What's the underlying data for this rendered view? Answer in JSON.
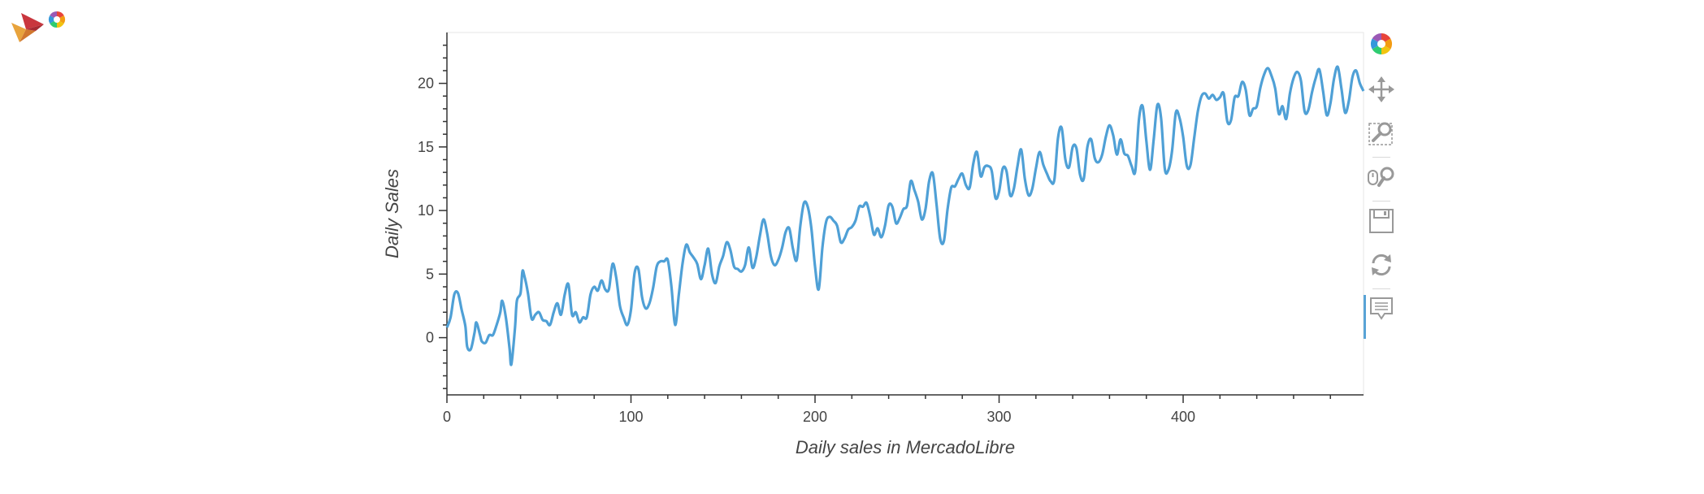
{
  "toolbar": {
    "tools": [
      {
        "name": "bokeh-logo-icon"
      },
      {
        "name": "pan-tool-icon"
      },
      {
        "name": "box-zoom-tool-icon"
      },
      {
        "name": "wheel-zoom-tool-icon"
      },
      {
        "name": "save-tool-icon"
      },
      {
        "name": "reset-tool-icon"
      },
      {
        "name": "hover-tool-icon"
      }
    ]
  },
  "chart_data": {
    "type": "line",
    "title": "",
    "xlabel": "Daily sales in MercadoLibre",
    "ylabel": "Daily Sales",
    "xlim": [
      0,
      498
    ],
    "ylim": [
      -4.5,
      24
    ],
    "x_ticks": [
      0,
      100,
      200,
      300,
      400
    ],
    "y_ticks": [
      0,
      5,
      10,
      15,
      20
    ],
    "grid": false,
    "line_color": "#4fa0d6",
    "series": [
      {
        "points": [
          [
            0,
            0.8
          ],
          [
            2,
            1.6
          ],
          [
            4,
            3.4
          ],
          [
            6,
            3.5
          ],
          [
            8,
            2.2
          ],
          [
            10,
            0.9
          ],
          [
            11,
            -0.7
          ],
          [
            13,
            -0.9
          ],
          [
            15,
            0.4
          ],
          [
            16,
            1.2
          ],
          [
            18,
            0.2
          ],
          [
            19,
            -0.3
          ],
          [
            21,
            -0.4
          ],
          [
            23,
            0.2
          ],
          [
            25,
            0.2
          ],
          [
            27,
            1.0
          ],
          [
            29,
            2.0
          ],
          [
            30,
            2.9
          ],
          [
            32,
            1.6
          ],
          [
            34,
            -0.8
          ],
          [
            35,
            -2.1
          ],
          [
            37,
            0.8
          ],
          [
            38,
            2.9
          ],
          [
            40,
            3.5
          ],
          [
            41,
            5.2
          ],
          [
            42,
            4.9
          ],
          [
            44,
            3.5
          ],
          [
            46,
            1.5
          ],
          [
            48,
            1.8
          ],
          [
            50,
            2.0
          ],
          [
            52,
            1.4
          ],
          [
            54,
            1.3
          ],
          [
            56,
            1.0
          ],
          [
            58,
            2.0
          ],
          [
            60,
            2.7
          ],
          [
            62,
            1.8
          ],
          [
            64,
            3.4
          ],
          [
            66,
            4.2
          ],
          [
            68,
            1.8
          ],
          [
            70,
            2.0
          ],
          [
            72,
            1.2
          ],
          [
            74,
            1.6
          ],
          [
            76,
            1.6
          ],
          [
            78,
            3.4
          ],
          [
            80,
            4.0
          ],
          [
            82,
            3.7
          ],
          [
            84,
            4.5
          ],
          [
            86,
            3.8
          ],
          [
            88,
            3.8
          ],
          [
            90,
            5.8
          ],
          [
            92,
            4.7
          ],
          [
            94,
            2.5
          ],
          [
            96,
            1.6
          ],
          [
            98,
            1.0
          ],
          [
            100,
            2.2
          ],
          [
            102,
            5.1
          ],
          [
            104,
            5.4
          ],
          [
            106,
            3.2
          ],
          [
            108,
            2.3
          ],
          [
            110,
            2.7
          ],
          [
            112,
            3.9
          ],
          [
            114,
            5.6
          ],
          [
            116,
            6.0
          ],
          [
            118,
            6.0
          ],
          [
            120,
            6.1
          ],
          [
            122,
            4.0
          ],
          [
            124,
            1.0
          ],
          [
            126,
            3.4
          ],
          [
            128,
            5.8
          ],
          [
            130,
            7.3
          ],
          [
            132,
            6.7
          ],
          [
            134,
            6.3
          ],
          [
            136,
            5.8
          ],
          [
            138,
            4.6
          ],
          [
            140,
            5.7
          ],
          [
            142,
            7.0
          ],
          [
            144,
            5.0
          ],
          [
            146,
            4.3
          ],
          [
            148,
            5.6
          ],
          [
            150,
            6.4
          ],
          [
            152,
            7.5
          ],
          [
            154,
            6.9
          ],
          [
            156,
            5.6
          ],
          [
            158,
            5.4
          ],
          [
            160,
            5.2
          ],
          [
            162,
            5.7
          ],
          [
            164,
            7.1
          ],
          [
            166,
            5.5
          ],
          [
            168,
            6.3
          ],
          [
            170,
            8.0
          ],
          [
            172,
            9.3
          ],
          [
            174,
            8.2
          ],
          [
            176,
            6.4
          ],
          [
            178,
            5.7
          ],
          [
            180,
            6.1
          ],
          [
            182,
            7.0
          ],
          [
            184,
            8.3
          ],
          [
            186,
            8.6
          ],
          [
            188,
            7.0
          ],
          [
            190,
            6.1
          ],
          [
            192,
            8.8
          ],
          [
            194,
            10.6
          ],
          [
            196,
            10.3
          ],
          [
            198,
            8.6
          ],
          [
            200,
            5.6
          ],
          [
            202,
            3.8
          ],
          [
            204,
            7.1
          ],
          [
            206,
            9.1
          ],
          [
            208,
            9.5
          ],
          [
            210,
            9.2
          ],
          [
            212,
            8.8
          ],
          [
            214,
            7.5
          ],
          [
            216,
            7.8
          ],
          [
            218,
            8.5
          ],
          [
            220,
            8.7
          ],
          [
            222,
            9.2
          ],
          [
            224,
            10.3
          ],
          [
            226,
            10.3
          ],
          [
            228,
            10.6
          ],
          [
            230,
            9.5
          ],
          [
            232,
            8.1
          ],
          [
            234,
            8.6
          ],
          [
            236,
            7.9
          ],
          [
            238,
            8.8
          ],
          [
            240,
            10.4
          ],
          [
            242,
            10.3
          ],
          [
            244,
            9.0
          ],
          [
            246,
            9.4
          ],
          [
            248,
            10.1
          ],
          [
            250,
            10.4
          ],
          [
            252,
            12.3
          ],
          [
            254,
            11.6
          ],
          [
            256,
            10.7
          ],
          [
            258,
            9.3
          ],
          [
            260,
            10.1
          ],
          [
            262,
            12.3
          ],
          [
            264,
            12.9
          ],
          [
            266,
            10.5
          ],
          [
            268,
            7.8
          ],
          [
            270,
            7.6
          ],
          [
            272,
            10.1
          ],
          [
            274,
            11.8
          ],
          [
            276,
            11.9
          ],
          [
            278,
            12.5
          ],
          [
            280,
            12.9
          ],
          [
            282,
            12.0
          ],
          [
            284,
            11.8
          ],
          [
            286,
            13.7
          ],
          [
            288,
            14.6
          ],
          [
            290,
            12.7
          ],
          [
            292,
            13.4
          ],
          [
            294,
            13.5
          ],
          [
            296,
            13.1
          ],
          [
            298,
            11.0
          ],
          [
            300,
            11.5
          ],
          [
            302,
            13.3
          ],
          [
            304,
            13.1
          ],
          [
            306,
            11.2
          ],
          [
            308,
            11.7
          ],
          [
            310,
            13.5
          ],
          [
            312,
            14.8
          ],
          [
            314,
            12.5
          ],
          [
            316,
            11.2
          ],
          [
            318,
            11.7
          ],
          [
            320,
            13.3
          ],
          [
            322,
            14.6
          ],
          [
            324,
            13.6
          ],
          [
            326,
            12.9
          ],
          [
            328,
            12.3
          ],
          [
            330,
            12.4
          ],
          [
            332,
            15.7
          ],
          [
            334,
            16.5
          ],
          [
            336,
            14.0
          ],
          [
            338,
            13.4
          ],
          [
            340,
            15.0
          ],
          [
            342,
            14.9
          ],
          [
            344,
            12.8
          ],
          [
            346,
            12.5
          ],
          [
            348,
            15.0
          ],
          [
            350,
            15.6
          ],
          [
            352,
            14.1
          ],
          [
            354,
            13.8
          ],
          [
            356,
            14.4
          ],
          [
            358,
            15.8
          ],
          [
            360,
            16.7
          ],
          [
            362,
            15.9
          ],
          [
            364,
            14.4
          ],
          [
            366,
            15.6
          ],
          [
            368,
            14.5
          ],
          [
            370,
            14.3
          ],
          [
            372,
            13.5
          ],
          [
            374,
            13.1
          ],
          [
            376,
            17.2
          ],
          [
            378,
            18.2
          ],
          [
            380,
            15.5
          ],
          [
            382,
            13.2
          ],
          [
            384,
            15.6
          ],
          [
            386,
            18.3
          ],
          [
            388,
            17.3
          ],
          [
            390,
            13.3
          ],
          [
            392,
            13.2
          ],
          [
            394,
            14.7
          ],
          [
            396,
            17.7
          ],
          [
            398,
            17.3
          ],
          [
            400,
            15.8
          ],
          [
            402,
            13.5
          ],
          [
            404,
            13.6
          ],
          [
            406,
            15.7
          ],
          [
            408,
            17.8
          ],
          [
            410,
            19.0
          ],
          [
            412,
            19.2
          ],
          [
            414,
            18.8
          ],
          [
            416,
            19.1
          ],
          [
            418,
            18.7
          ],
          [
            420,
            18.9
          ],
          [
            422,
            19.2
          ],
          [
            424,
            17.0
          ],
          [
            426,
            17.1
          ],
          [
            428,
            18.9
          ],
          [
            430,
            19.0
          ],
          [
            432,
            20.1
          ],
          [
            434,
            19.5
          ],
          [
            436,
            17.5
          ],
          [
            438,
            18.0
          ],
          [
            440,
            18.2
          ],
          [
            442,
            19.7
          ],
          [
            444,
            20.7
          ],
          [
            446,
            21.2
          ],
          [
            448,
            20.6
          ],
          [
            450,
            19.6
          ],
          [
            452,
            17.6
          ],
          [
            454,
            18.2
          ],
          [
            456,
            17.2
          ],
          [
            458,
            19.2
          ],
          [
            460,
            20.4
          ],
          [
            462,
            20.9
          ],
          [
            464,
            20.2
          ],
          [
            466,
            17.8
          ],
          [
            468,
            17.9
          ],
          [
            470,
            19.3
          ],
          [
            472,
            20.4
          ],
          [
            474,
            21.1
          ],
          [
            476,
            19.4
          ],
          [
            478,
            17.5
          ],
          [
            480,
            18.4
          ],
          [
            482,
            20.4
          ],
          [
            484,
            21.3
          ],
          [
            486,
            19.6
          ],
          [
            488,
            17.7
          ],
          [
            490,
            18.6
          ],
          [
            492,
            20.5
          ],
          [
            494,
            21.0
          ],
          [
            496,
            20.0
          ],
          [
            498,
            19.4
          ]
        ]
      }
    ]
  }
}
